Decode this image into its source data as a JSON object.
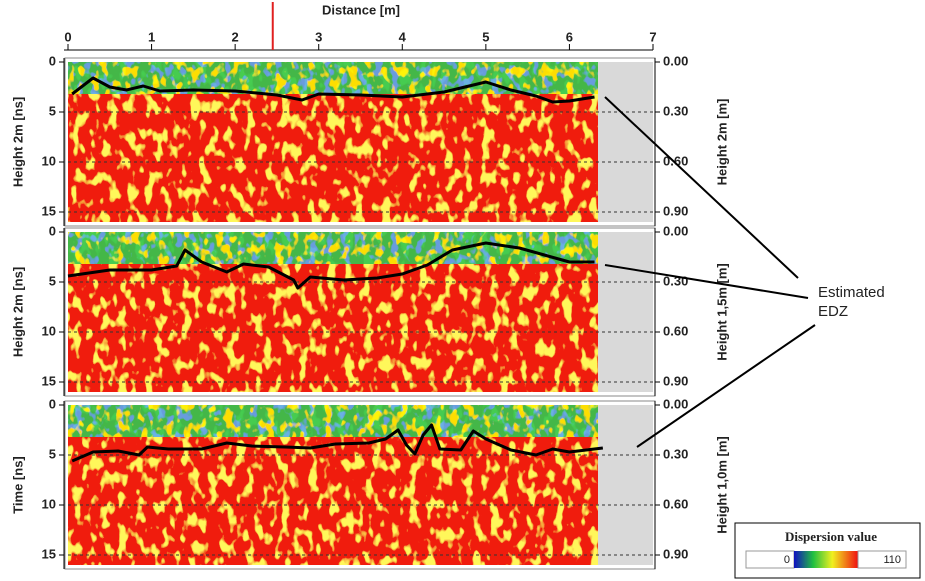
{
  "x_axis": {
    "label": "Distance [m]",
    "xlim": [
      0,
      7
    ],
    "xticks": [
      0,
      1,
      2,
      3,
      4,
      5,
      6,
      7
    ],
    "cursor": 2.45
  },
  "chart_data": [
    {
      "type": "line",
      "ylabel": "Height 2m [ns]",
      "y2label": "Height 2m [m]",
      "ylim": [
        0,
        16
      ],
      "yticks": [
        0,
        5,
        10,
        15
      ],
      "y2lim": [
        0,
        0.96
      ],
      "y2ticks": [
        {
          "value": 0,
          "label": "0.00"
        },
        {
          "value": 0.3,
          "label": "0.30"
        },
        {
          "value": 0.6,
          "label": "0.60"
        },
        {
          "value": 0.9,
          "label": "0.90"
        }
      ],
      "grid": "y2",
      "color": "#000000",
      "x": [
        0.05,
        0.3,
        0.5,
        0.7,
        0.9,
        1.1,
        1.5,
        2.0,
        2.5,
        2.8,
        3.0,
        3.5,
        4.0,
        4.5,
        5.0,
        5.3,
        5.6,
        5.8,
        6.0,
        6.3
      ],
      "values": [
        3.2,
        1.6,
        2.5,
        2.8,
        2.4,
        2.9,
        2.8,
        2.9,
        3.3,
        3.8,
        3.2,
        3.3,
        3.5,
        3.0,
        2.0,
        2.8,
        3.4,
        4.0,
        3.9,
        3.5
      ]
    },
    {
      "type": "line",
      "ylabel": "Height 2m [ns]",
      "y2label": "Height 1,5m [m]",
      "ylim": [
        0,
        16
      ],
      "yticks": [
        0,
        5,
        10,
        15
      ],
      "y2lim": [
        0,
        0.96
      ],
      "y2ticks": [
        {
          "value": 0,
          "label": "0.00"
        },
        {
          "value": 0.3,
          "label": "0.30"
        },
        {
          "value": 0.6,
          "label": "0.60"
        },
        {
          "value": 0.9,
          "label": "0.90"
        }
      ],
      "grid": "y2",
      "color": "#000000",
      "x": [
        0,
        0.5,
        1.0,
        1.3,
        1.4,
        1.6,
        1.9,
        2.1,
        2.4,
        2.7,
        2.75,
        2.9,
        3.3,
        3.7,
        4.0,
        4.3,
        4.6,
        5.0,
        5.4,
        5.7,
        6.0,
        6.3
      ],
      "values": [
        4.4,
        3.8,
        3.8,
        3.4,
        1.8,
        3.0,
        4.0,
        3.2,
        3.5,
        4.8,
        5.6,
        4.5,
        4.8,
        4.6,
        4.2,
        3.3,
        1.8,
        1.1,
        1.6,
        2.3,
        3.0,
        3.0
      ]
    },
    {
      "type": "line",
      "ylabel": "Time [ns]",
      "y2label": "Height 1,0m [m]",
      "ylim": [
        0,
        16
      ],
      "yticks": [
        0,
        5,
        10,
        15
      ],
      "y2lim": [
        0,
        0.96
      ],
      "y2ticks": [
        {
          "value": 0,
          "label": "0.00"
        },
        {
          "value": 0.3,
          "label": "0.30"
        },
        {
          "value": 0.6,
          "label": "0.60"
        },
        {
          "value": 0.9,
          "label": "0.90"
        }
      ],
      "grid": "y2",
      "color": "#000000",
      "x": [
        0.05,
        0.3,
        0.6,
        0.85,
        0.95,
        1.2,
        1.6,
        1.9,
        2.2,
        2.6,
        2.9,
        3.2,
        3.6,
        3.8,
        3.95,
        4.05,
        4.15,
        4.25,
        4.35,
        4.45,
        4.7,
        4.85,
        5.0,
        5.3,
        5.6,
        5.8,
        6.0,
        6.4
      ],
      "values": [
        5.6,
        4.7,
        4.6,
        5.0,
        4.2,
        4.4,
        4.4,
        3.8,
        4.1,
        4.2,
        4.3,
        3.9,
        3.8,
        3.4,
        2.5,
        4.0,
        4.9,
        3.0,
        2.0,
        4.4,
        4.5,
        2.6,
        3.4,
        4.5,
        5.0,
        4.4,
        4.7,
        4.3
      ]
    }
  ],
  "annotation": [
    "Estimated",
    "EDZ"
  ],
  "colorbar": {
    "title": "Dispersion value",
    "min": 0,
    "max": 110
  }
}
